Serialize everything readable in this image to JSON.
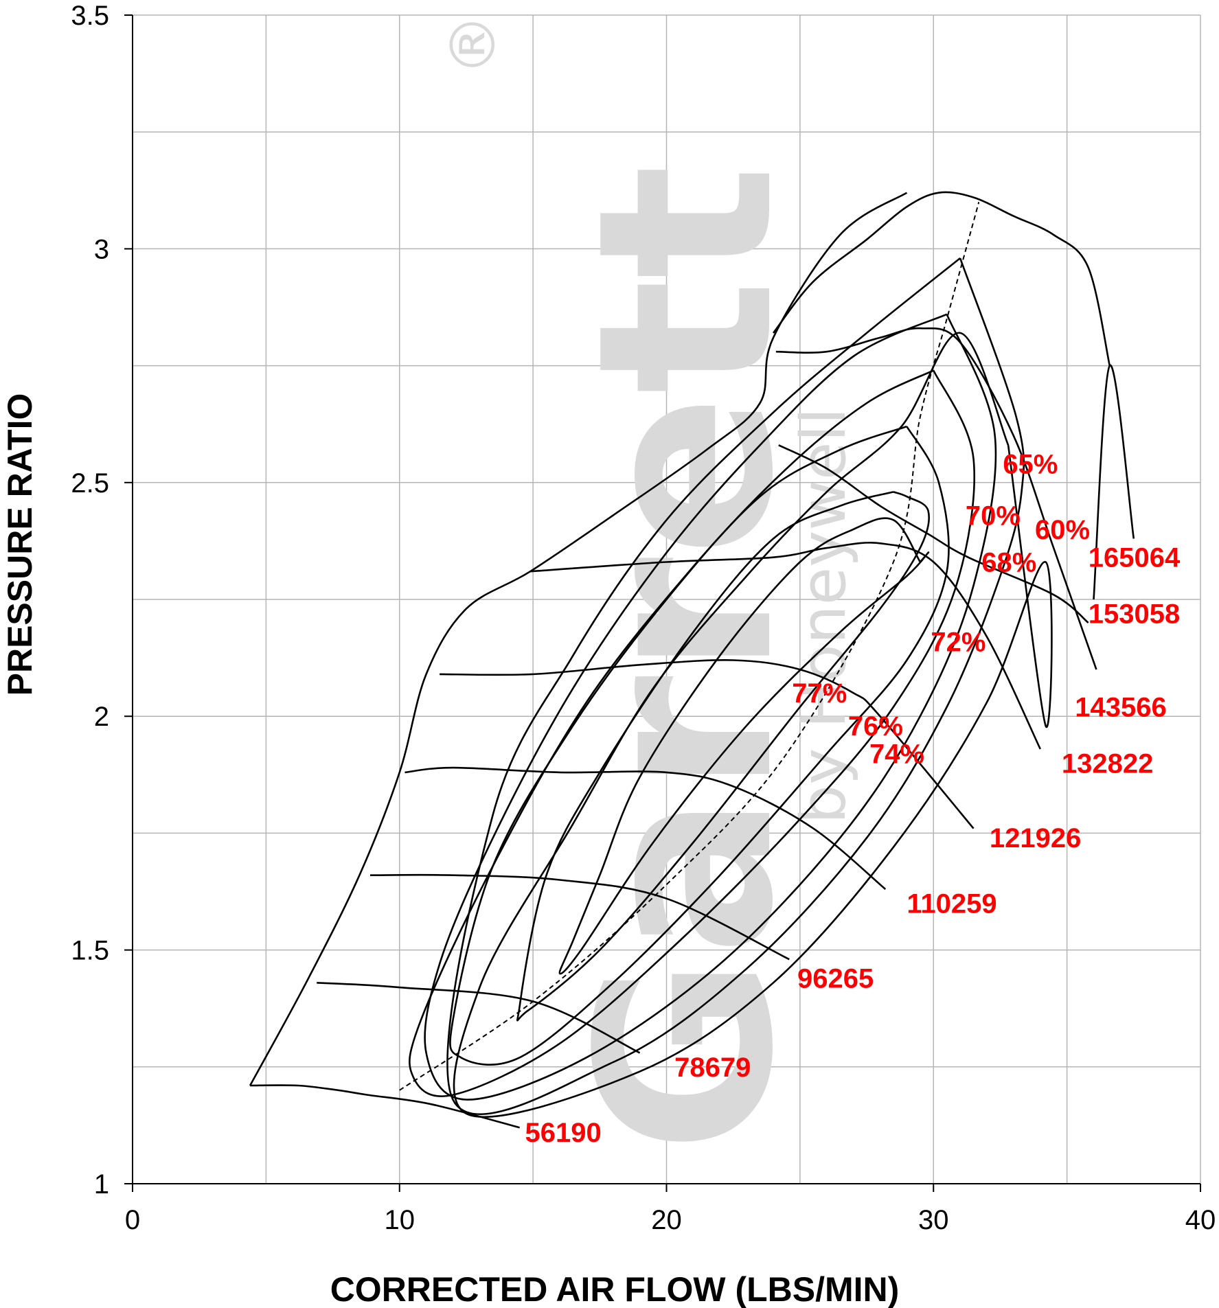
{
  "chart_data": {
    "type": "line",
    "title": "",
    "xlabel": "CORRECTED AIR FLOW (LBS/MIN)",
    "ylabel": "PRESSURE RATIO",
    "xlim": [
      0,
      40
    ],
    "ylim": [
      1,
      3.5
    ],
    "x_ticks": [
      "0",
      "10",
      "20",
      "30",
      "40"
    ],
    "y_ticks": [
      "1",
      "1.5",
      "2",
      "2.5",
      "3",
      "3.5"
    ],
    "x_minor_grid_step": 5,
    "y_minor_grid_step": 0.25,
    "grid": true,
    "watermark": "Garrett® by Honeywell",
    "watermark_brand": "Garrett",
    "watermark_sub": "by Honeywell",
    "watermark_mark": "®",
    "speed_lines": [
      {
        "name": "56190",
        "x": [
          4.4,
          6.2,
          7.7,
          8.8,
          11.2,
          14.5
        ],
        "y": [
          1.21,
          1.21,
          1.2,
          1.19,
          1.17,
          1.12
        ]
      },
      {
        "name": "78679",
        "x": [
          6.9,
          10.0,
          15.0,
          19.0
        ],
        "y": [
          1.43,
          1.42,
          1.39,
          1.28
        ]
      },
      {
        "name": "96265",
        "x": [
          8.9,
          12.0,
          16.0,
          20.0,
          24.6
        ],
        "y": [
          1.66,
          1.66,
          1.65,
          1.61,
          1.48
        ]
      },
      {
        "name": "110259",
        "x": [
          10.2,
          12.0,
          16.0,
          20.0,
          22.5,
          25.5,
          28.2
        ],
        "y": [
          1.88,
          1.89,
          1.88,
          1.88,
          1.85,
          1.76,
          1.63
        ]
      },
      {
        "name": "121926",
        "x": [
          11.5,
          15.0,
          19.0,
          22.5,
          25.0,
          27.0,
          28.0,
          31.5
        ],
        "y": [
          2.09,
          2.09,
          2.11,
          2.12,
          2.1,
          2.05,
          2.0,
          1.76
        ]
      },
      {
        "name": "132822",
        "x": [
          14.9,
          20.0,
          24.0,
          26.0,
          28.0,
          30.0,
          32.0,
          34.0
        ],
        "y": [
          2.31,
          2.33,
          2.34,
          2.36,
          2.37,
          2.33,
          2.17,
          1.93
        ]
      },
      {
        "name": "143566",
        "x": [
          24.1,
          26.0,
          28.0,
          29.5,
          31.0,
          33.0,
          34.5,
          36.1
        ],
        "y": [
          2.78,
          2.78,
          2.81,
          2.83,
          2.8,
          2.6,
          2.36,
          2.1
        ]
      },
      {
        "name": "153058",
        "x": [
          24.0,
          25.5,
          27.5,
          29.0,
          30.2,
          31.5,
          33.0,
          34.5,
          35.8,
          36.6
        ],
        "y": [
          2.82,
          2.93,
          3.02,
          3.09,
          3.12,
          3.11,
          3.07,
          3.03,
          2.96,
          2.75
        ]
      },
      {
        "name": "165064",
        "x": [
          36.0,
          36.6,
          37.5
        ],
        "y": [
          2.25,
          2.75,
          2.38
        ]
      }
    ],
    "speed_line_labels": [
      "56190",
      "78679",
      "96265",
      "110259",
      "121926",
      "132822",
      "143566",
      "153058",
      "165064"
    ],
    "efficiency_islands": [
      {
        "name": "77%",
        "x": [
          29.5,
          28.5,
          27.0,
          25.0,
          22.0,
          19.0,
          17.5,
          16.5,
          16.0,
          16.8,
          19.5,
          23.0,
          26.5,
          29.0,
          29.8,
          29.5
        ],
        "y": [
          2.33,
          2.42,
          2.4,
          2.33,
          2.13,
          1.87,
          1.66,
          1.52,
          1.45,
          1.5,
          1.73,
          1.98,
          2.18,
          2.3,
          2.35,
          2.33
        ]
      },
      {
        "name": "76%",
        "x": [
          28.5,
          26.5,
          24.0,
          21.0,
          17.5,
          15.5,
          14.5,
          14.8,
          17.5,
          21.0,
          25.0,
          28.0,
          29.5,
          29.8,
          29.0,
          28.5
        ],
        "y": [
          2.48,
          2.45,
          2.38,
          2.18,
          1.88,
          1.66,
          1.38,
          1.37,
          1.5,
          1.73,
          2.02,
          2.23,
          2.36,
          2.44,
          2.47,
          2.48
        ]
      },
      {
        "name": "74%",
        "x": [
          29.0,
          26.5,
          23.5,
          20.0,
          16.5,
          13.5,
          12.0,
          12.3,
          14.5,
          18.0,
          22.0,
          26.0,
          29.0,
          30.5,
          30.2,
          29.0
        ],
        "y": [
          2.62,
          2.57,
          2.47,
          2.25,
          1.98,
          1.68,
          1.35,
          1.27,
          1.27,
          1.43,
          1.66,
          1.92,
          2.12,
          2.31,
          2.5,
          2.62
        ]
      },
      {
        "name": "72%",
        "x": [
          30.0,
          27.5,
          24.5,
          21.0,
          17.0,
          13.5,
          10.8,
          10.5,
          12.0,
          16.0,
          20.5,
          25.0,
          28.5,
          30.8,
          31.5,
          30.0
        ],
        "y": [
          2.74,
          2.67,
          2.53,
          2.32,
          2.03,
          1.68,
          1.35,
          1.23,
          1.19,
          1.3,
          1.52,
          1.78,
          2.02,
          2.27,
          2.55,
          2.74
        ]
      },
      {
        "name": "70%",
        "x": [
          30.5,
          27.0,
          23.5,
          20.0,
          16.5,
          13.5,
          11.5,
          11.0,
          12.5,
          17.0,
          22.0,
          26.5,
          29.5,
          31.5,
          32.3,
          30.5
        ],
        "y": [
          2.86,
          2.77,
          2.58,
          2.35,
          2.06,
          1.74,
          1.47,
          1.28,
          1.18,
          1.27,
          1.47,
          1.74,
          2.0,
          2.28,
          2.6,
          2.86
        ]
      },
      {
        "name": "68%",
        "x": [
          31.0,
          27.5,
          24.0,
          20.0,
          16.5,
          13.5,
          12.0,
          18.0,
          23.0,
          27.5,
          30.5,
          32.5,
          33.3,
          33.1,
          31.0
        ],
        "y": [
          2.98,
          2.82,
          2.65,
          2.42,
          2.13,
          1.79,
          1.18,
          1.26,
          1.46,
          1.74,
          2.02,
          2.3,
          2.48,
          2.64,
          2.98
        ]
      },
      {
        "name": "65%",
        "x": [
          32.8,
          31.0,
          28.8,
          26.0,
          23.0,
          19.5,
          16.5,
          13.0,
          12.5,
          19.0,
          24.0,
          28.5,
          32.0,
          34.2,
          34.2,
          32.8
        ],
        "y": [
          2.58,
          2.82,
          2.62,
          2.48,
          2.3,
          2.06,
          1.77,
          1.42,
          1.15,
          1.24,
          1.43,
          1.72,
          2.03,
          2.33,
          1.98,
          2.58
        ]
      },
      {
        "name": "60%",
        "x": [
          24.2,
          26.0,
          28.0,
          29.8,
          31.3,
          34.5,
          35.8
        ],
        "y": [
          2.58,
          2.53,
          2.45,
          2.39,
          2.34,
          2.26,
          2.2
        ]
      }
    ],
    "efficiency_labels": [
      "77%",
      "76%",
      "74%",
      "72%",
      "70%",
      "68%",
      "65%",
      "60%"
    ],
    "surge_line": {
      "x": [
        4.4,
        6.5,
        8.5,
        10.0,
        11.0,
        12.5,
        14.9,
        18.0,
        21.5,
        23.5,
        24.0,
        26.5,
        29.0
      ],
      "y": [
        1.21,
        1.43,
        1.66,
        1.88,
        2.09,
        2.23,
        2.31,
        2.43,
        2.57,
        2.67,
        2.81,
        3.03,
        3.12
      ]
    },
    "centerline": {
      "x": [
        10.0,
        15.0,
        20.0,
        24.5,
        28.5,
        29.5,
        30.5,
        31.7
      ],
      "y": [
        1.2,
        1.39,
        1.64,
        1.92,
        2.33,
        2.64,
        2.85,
        3.1
      ]
    }
  }
}
